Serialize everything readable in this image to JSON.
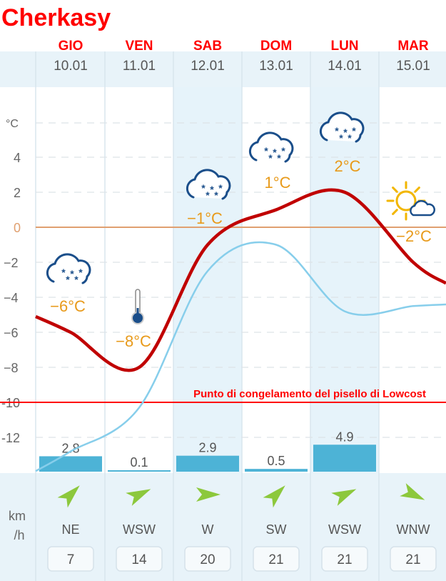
{
  "title": "Cherkasy",
  "days": [
    {
      "dow": "GIO",
      "date": "10.01",
      "temp_label": "−6°C",
      "precip": "2.8",
      "dir": "NE",
      "wind_speed": "7",
      "icon": "snow-cloud-icon"
    },
    {
      "dow": "VEN",
      "date": "11.01",
      "temp_label": "−8°C",
      "precip": "0.1",
      "dir": "WSW",
      "wind_speed": "14",
      "icon": "thermometer-cold-icon"
    },
    {
      "dow": "SAB",
      "date": "12.01",
      "temp_label": "−1°C",
      "precip": "2.9",
      "dir": "W",
      "wind_speed": "20",
      "icon": "snow-cloud-icon"
    },
    {
      "dow": "DOM",
      "date": "13.01",
      "temp_label": "1°C",
      "precip": "0.5",
      "dir": "SW",
      "wind_speed": "21",
      "icon": "snow-cloud-icon"
    },
    {
      "dow": "LUN",
      "date": "14.01",
      "temp_label": "2°C",
      "precip": "4.9",
      "dir": "WSW",
      "wind_speed": "21",
      "icon": "snow-cloud-icon"
    },
    {
      "dow": "MAR",
      "date": "15.01",
      "temp_label": "−2°C",
      "precip": "",
      "dir": "WNW",
      "wind_speed": "21",
      "icon": "sun-cloud-icon"
    }
  ],
  "y_axis": {
    "unit": "°C",
    "ticks": [
      "4",
      "2",
      "0",
      "−2",
      "−4",
      "−6",
      "−8",
      "-10",
      "-12"
    ]
  },
  "wind_unit": "km\n/h",
  "annotation": "Punto di congelamento del pisello di Lowcost",
  "colors": {
    "header": "#ff0000",
    "max_line": "#c00000",
    "min_line": "#87ceeb",
    "bar": "#4db3d6",
    "freeze": "#e0a070",
    "threshold": "#ff0000",
    "band": "#e6f3fa",
    "temp_text": "#e89a1a",
    "wind_arrow": "#8cc83c",
    "axis_text": "#666666"
  },
  "chart_data": {
    "type": "line",
    "x": [
      "10.01",
      "11.01",
      "12.01",
      "13.01",
      "14.01",
      "15.01"
    ],
    "series": [
      {
        "values": [
          -6,
          -8,
          -1,
          1,
          2,
          -2
        ]
      },
      {
        "values": [
          -12.8,
          -10.3,
          -2.5,
          -1,
          -4.8,
          -4.5
        ]
      }
    ],
    "bars": {
      "values": [
        2.8,
        0.1,
        2.9,
        0.5,
        4.9,
        null
      ]
    },
    "threshold": {
      "value": -10,
      "label": "Punto di congelamento del pisello di Lowcost"
    },
    "ylim": [
      -13,
      5
    ],
    "ylabel": "°C",
    "grid": true
  }
}
